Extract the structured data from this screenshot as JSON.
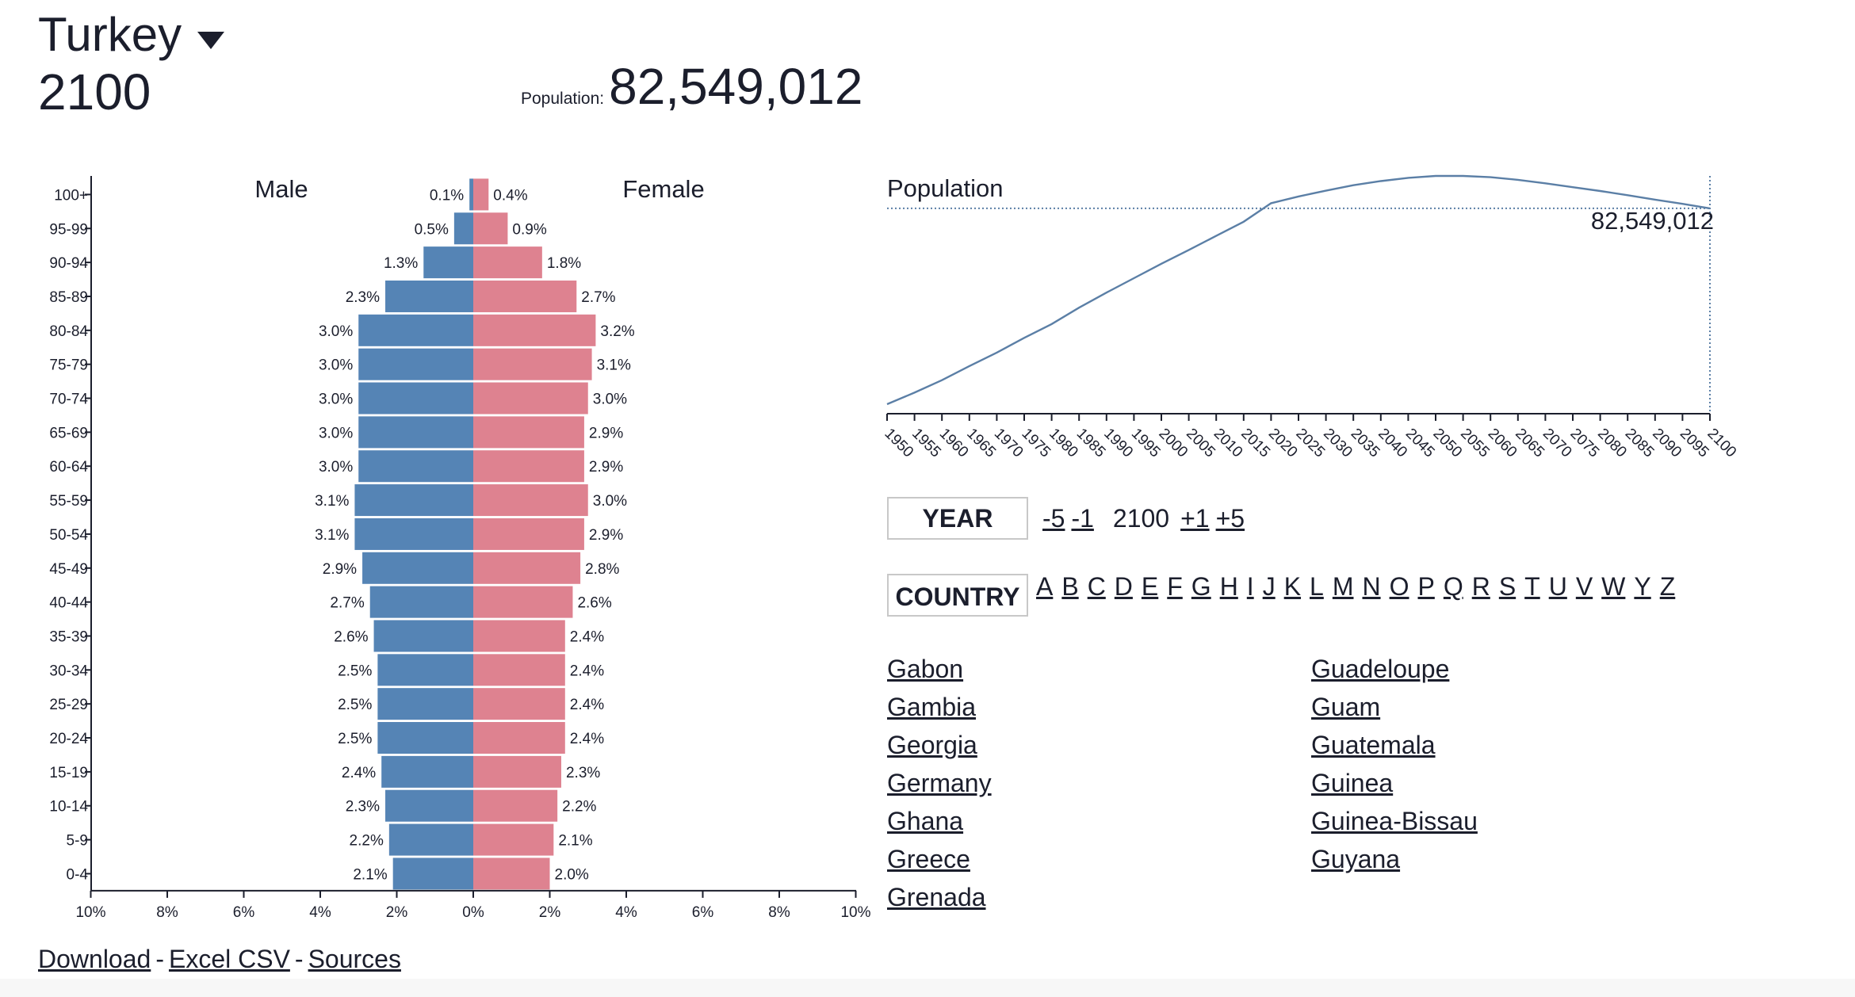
{
  "header": {
    "country": "Turkey",
    "year": "2100",
    "population_label": "Population:",
    "population_value": "82,549,012"
  },
  "chart_data": [
    {
      "type": "bar",
      "subtype": "population-pyramid",
      "categories": [
        "100+",
        "95-99",
        "90-94",
        "85-89",
        "80-84",
        "75-79",
        "70-74",
        "65-69",
        "60-64",
        "55-59",
        "50-54",
        "45-49",
        "40-44",
        "35-39",
        "30-34",
        "25-29",
        "20-24",
        "15-19",
        "10-14",
        "5-9",
        "0-4"
      ],
      "series": [
        {
          "name": "Male",
          "color": "#5584b5",
          "values": [
            0.1,
            0.5,
            1.3,
            2.3,
            3.0,
            3.0,
            3.0,
            3.0,
            3.0,
            3.1,
            3.1,
            2.9,
            2.7,
            2.6,
            2.5,
            2.5,
            2.5,
            2.4,
            2.3,
            2.2,
            2.1
          ]
        },
        {
          "name": "Female",
          "color": "#de8290",
          "values": [
            0.4,
            0.9,
            1.8,
            2.7,
            3.2,
            3.1,
            3.0,
            2.9,
            2.9,
            3.0,
            2.9,
            2.8,
            2.6,
            2.4,
            2.4,
            2.4,
            2.4,
            2.3,
            2.2,
            2.1,
            2.0
          ]
        }
      ],
      "x_ticks": [
        "10%",
        "8%",
        "6%",
        "4%",
        "2%",
        "0%",
        "2%",
        "4%",
        "6%",
        "8%",
        "10%"
      ],
      "xlim": [
        -10,
        10
      ],
      "unit": "%"
    },
    {
      "type": "line",
      "title": "Population",
      "x": [
        1950,
        1955,
        1960,
        1965,
        1970,
        1975,
        1980,
        1985,
        1990,
        1995,
        2000,
        2005,
        2010,
        2015,
        2020,
        2025,
        2030,
        2035,
        2040,
        2045,
        2050,
        2055,
        2060,
        2065,
        2070,
        2075,
        2080,
        2085,
        2090,
        2095,
        2100
      ],
      "values": [
        21.4,
        25.0,
        28.9,
        33.3,
        37.5,
        42.1,
        46.4,
        51.5,
        56.2,
        60.7,
        65.2,
        69.5,
        73.9,
        78.3,
        84.1,
        86.2,
        88.0,
        89.7,
        91.0,
        92.0,
        92.6,
        92.6,
        92.2,
        91.4,
        90.3,
        89.1,
        87.9,
        86.6,
        85.2,
        83.9,
        82.5
      ],
      "x_ticks": [
        "1950",
        "1955",
        "1960",
        "1965",
        "1970",
        "1975",
        "1980",
        "1985",
        "1990",
        "1995",
        "2000",
        "2005",
        "2010",
        "2015",
        "2020",
        "2025",
        "2030",
        "2035",
        "2040",
        "2045",
        "2050",
        "2055",
        "2060",
        "2065",
        "2070",
        "2075",
        "2080",
        "2085",
        "2090",
        "2095",
        "2100"
      ],
      "highlight_label": "82,549,012",
      "color": "#5b7fa6"
    }
  ],
  "controls": {
    "year_button": "YEAR",
    "minus5": "-5",
    "minus1": "-1",
    "current_year": "2100",
    "plus1": "+1",
    "plus5": "+5",
    "country_button": "COUNTRY",
    "letters": [
      "A",
      "B",
      "C",
      "D",
      "E",
      "F",
      "G",
      "H",
      "I",
      "J",
      "K",
      "L",
      "M",
      "N",
      "O",
      "P",
      "Q",
      "R",
      "S",
      "T",
      "U",
      "V",
      "W",
      "Y",
      "Z"
    ]
  },
  "countries_col1": [
    "Gabon",
    "Gambia",
    "Georgia",
    "Germany",
    "Ghana",
    "Greece",
    "Grenada"
  ],
  "countries_col2": [
    "Guadeloupe",
    "Guam",
    "Guatemala",
    "Guinea",
    "Guinea-Bissau",
    "Guyana"
  ],
  "footer": {
    "download": "Download",
    "sep": "-",
    "csv": "Excel CSV",
    "sources": "Sources"
  }
}
